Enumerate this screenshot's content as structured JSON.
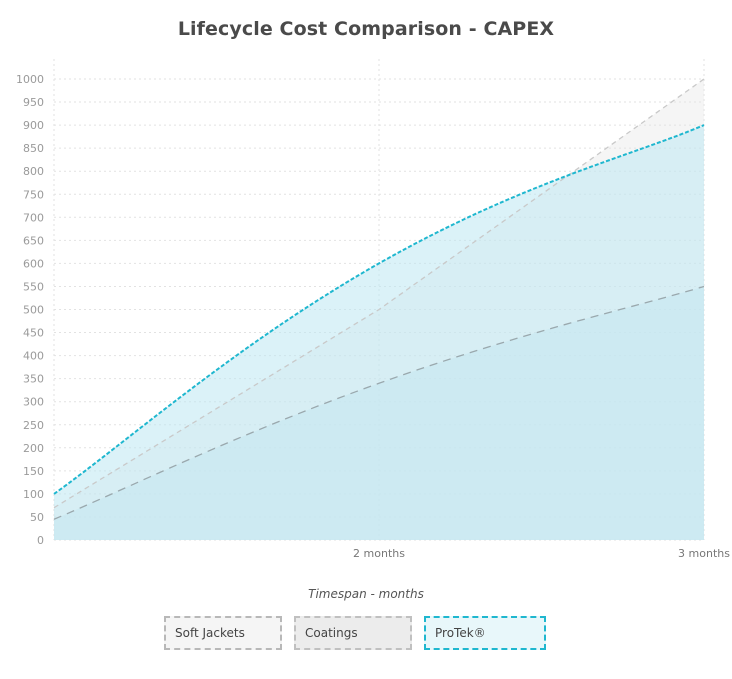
{
  "chart_data": {
    "type": "area",
    "title": "Lifecycle Cost Comparison - CAPEX",
    "xlabel": "Timespan - months",
    "ylabel": "",
    "x": [
      1,
      2,
      3
    ],
    "x_tick_labels": [
      "",
      "2 months",
      "3 months"
    ],
    "y_ticks": [
      0,
      50,
      100,
      150,
      200,
      250,
      300,
      350,
      400,
      450,
      500,
      550,
      600,
      650,
      700,
      750,
      800,
      850,
      900,
      950,
      1000
    ],
    "ylim": [
      0,
      1000
    ],
    "grid": true,
    "legend_position": "bottom",
    "series": [
      {
        "name": "Soft Jackets",
        "values": [
          70,
          500,
          1000
        ],
        "color": "#c8c8c8"
      },
      {
        "name": "Coatings",
        "values": [
          45,
          340,
          550
        ],
        "color": "#9aa8ad"
      },
      {
        "name": "ProTek®",
        "values": [
          100,
          600,
          900
        ],
        "color": "#1fb7cf"
      }
    ]
  }
}
